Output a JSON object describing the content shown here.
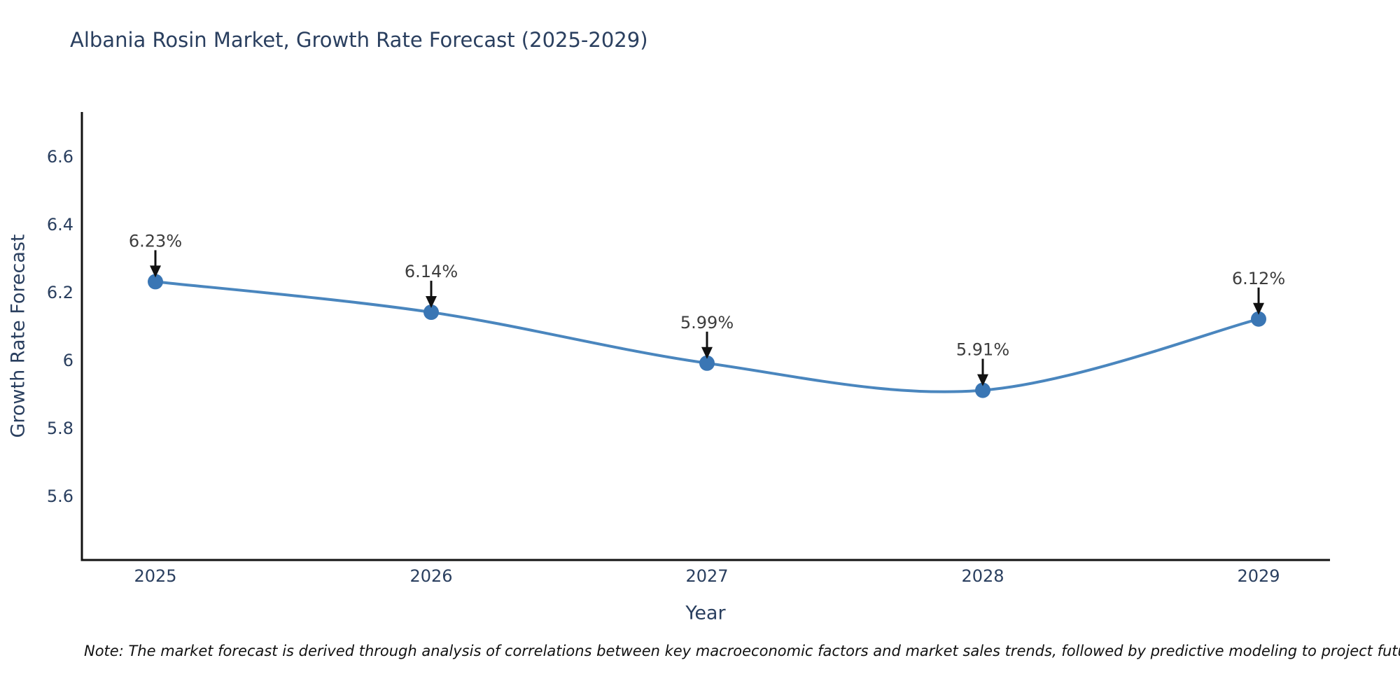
{
  "title": "Albania Rosin Market, Growth Rate Forecast (2025-2029)",
  "note": "Note: The market forecast is derived through analysis of correlations between key macroeconomic factors and market sales trends, followed by predictive modeling to project future sales",
  "chart_data": {
    "type": "line",
    "title": "Albania Rosin Market, Growth Rate Forecast (2025-2029)",
    "xlabel": "Year",
    "ylabel": "Growth Rate Forecast",
    "x": [
      2025,
      2026,
      2027,
      2028,
      2029
    ],
    "series": [
      {
        "name": "Growth Rate Forecast",
        "values": [
          6.23,
          6.14,
          5.99,
          5.91,
          6.12
        ]
      }
    ],
    "point_labels": [
      "6.23%",
      "6.14%",
      "5.99%",
      "5.91%",
      "6.12%"
    ],
    "yticks": [
      5.6,
      5.8,
      6,
      6.2,
      6.4,
      6.6
    ],
    "ylim": [
      5.41,
      6.73
    ],
    "grid": false,
    "legend": "none",
    "line_shape": "spline",
    "colors": {
      "line": "#4a86be",
      "marker": "#3a76b4",
      "axis": "#111111",
      "axis_text": "#2a3f5f",
      "point_label": "#3d3d3d",
      "arrow": "#111111"
    }
  }
}
